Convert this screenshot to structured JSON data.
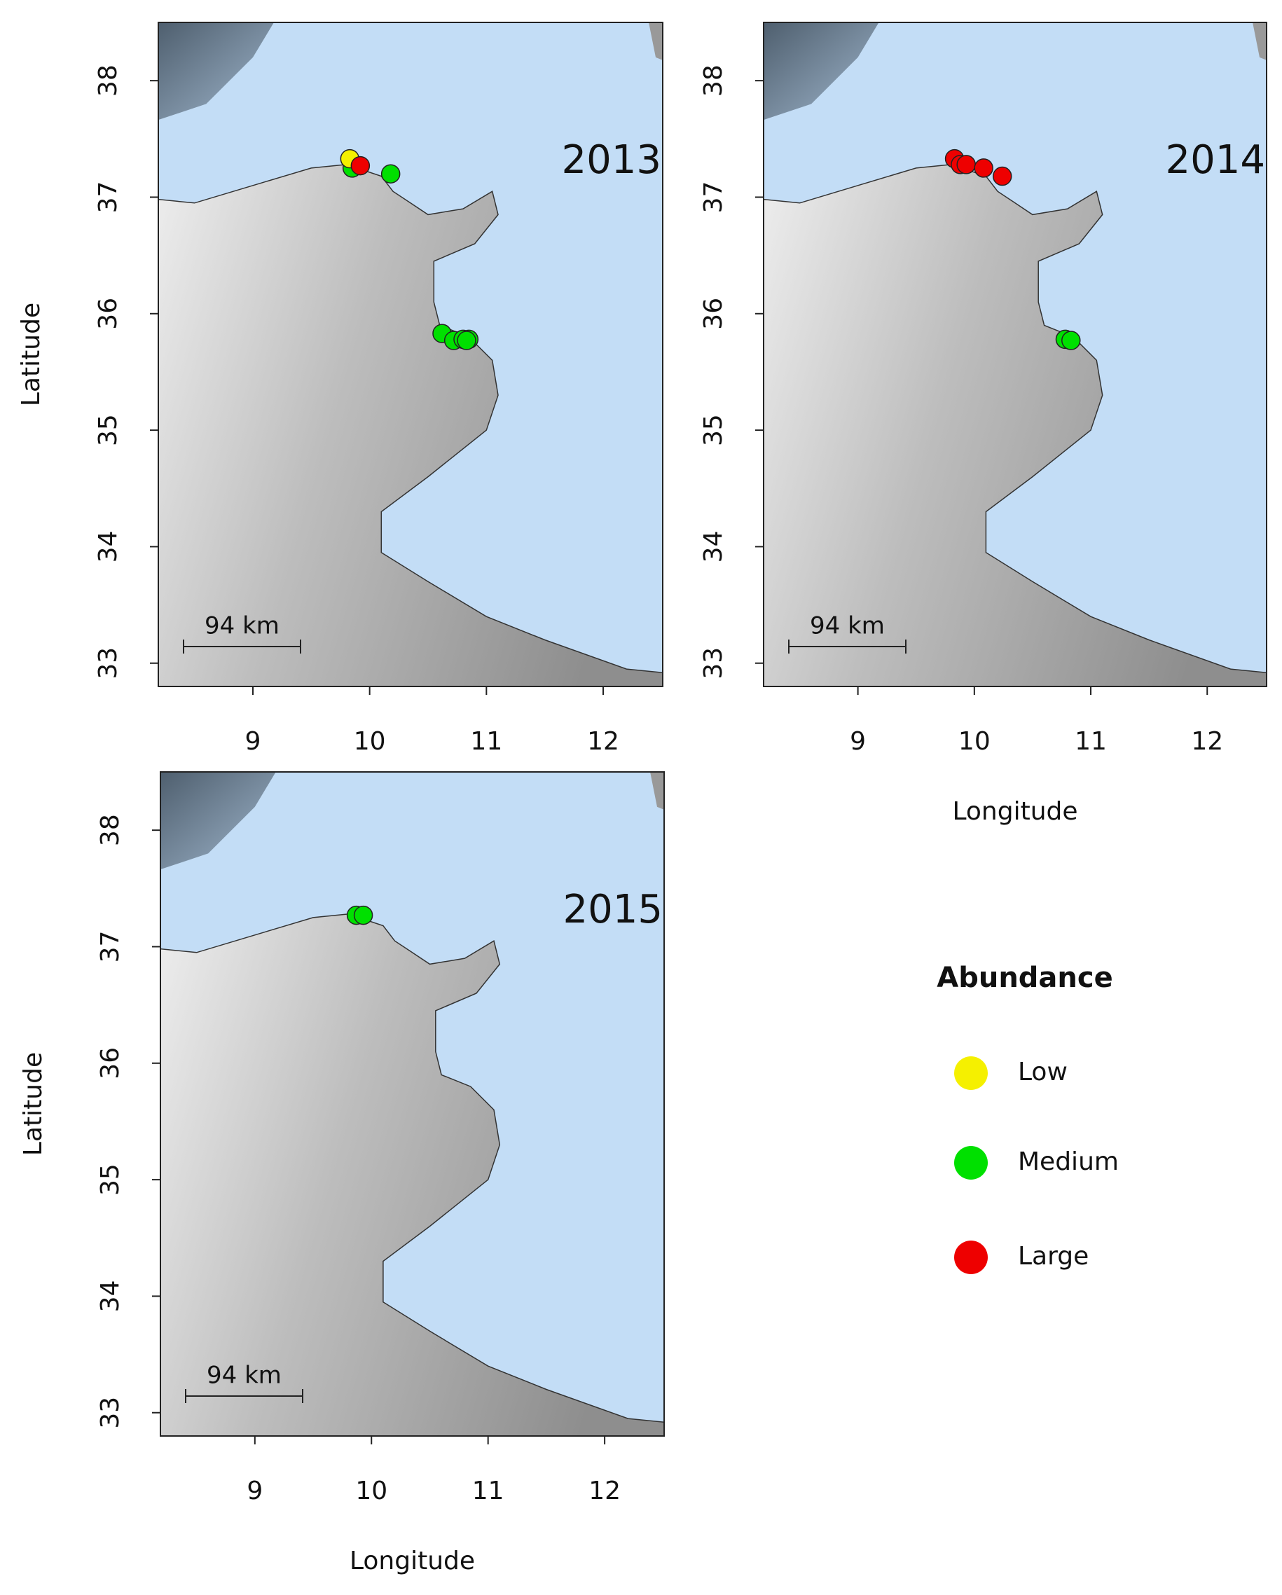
{
  "chart_data": [
    {
      "type": "scatter",
      "title": "2013",
      "ylabel": "Latitude",
      "xlim": [
        8.19,
        12.51
      ],
      "ylim": [
        32.8,
        38.5
      ],
      "xticks": [
        9,
        10,
        11,
        12
      ],
      "yticks": [
        33,
        34,
        35,
        36,
        37,
        38
      ],
      "scale_bar": "94 km",
      "series": [
        {
          "color": "#00e000",
          "x": [
            9.85,
            10.18,
            10.62,
            10.72,
            10.8,
            10.85,
            10.83
          ],
          "values": [
            37.25,
            37.2,
            35.83,
            35.77,
            35.78,
            35.78,
            35.77
          ]
        },
        {
          "color": "#f5f000",
          "x": [
            9.83
          ],
          "values": [
            37.33
          ]
        },
        {
          "color": "#ee0000",
          "x": [
            9.92
          ],
          "values": [
            37.27
          ]
        }
      ]
    },
    {
      "type": "scatter",
      "title": "2014",
      "xlabel": "Longitude",
      "xlim": [
        8.19,
        12.51
      ],
      "ylim": [
        32.8,
        38.5
      ],
      "xticks": [
        9,
        10,
        11,
        12
      ],
      "yticks": [
        33,
        34,
        35,
        36,
        37,
        38
      ],
      "scale_bar": "94 km",
      "series": [
        {
          "color": "#ee0000",
          "x": [
            9.83,
            9.88,
            9.93,
            10.08,
            10.24
          ],
          "values": [
            37.33,
            37.28,
            37.28,
            37.25,
            37.18
          ]
        },
        {
          "color": "#00e000",
          "x": [
            10.78,
            10.83
          ],
          "values": [
            35.78,
            35.77
          ]
        }
      ]
    },
    {
      "type": "scatter",
      "title": "2015",
      "xlabel": "Longitude",
      "ylabel": "Latitude",
      "xlim": [
        8.19,
        12.51
      ],
      "ylim": [
        32.8,
        38.5
      ],
      "xticks": [
        9,
        10,
        11,
        12
      ],
      "yticks": [
        33,
        34,
        35,
        36,
        37,
        38
      ],
      "scale_bar": "94 km",
      "series": [
        {
          "color": "#00e000",
          "x": [
            9.87,
            9.93
          ],
          "values": [
            37.27,
            37.27
          ]
        }
      ]
    }
  ],
  "legend": {
    "title": "Abundance",
    "entries": [
      {
        "name": "Low",
        "color": "#f5f000"
      },
      {
        "name": "Medium",
        "color": "#00e000"
      },
      {
        "name": "Large",
        "color": "#ee0000"
      }
    ]
  }
}
